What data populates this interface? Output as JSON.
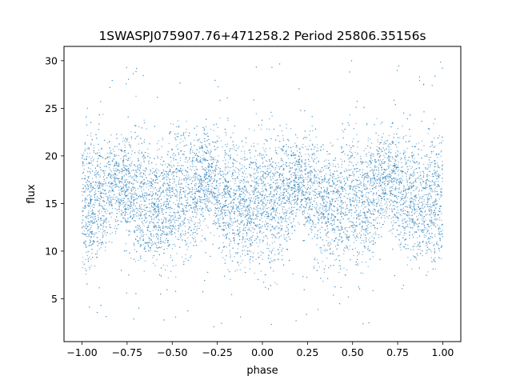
{
  "chart_data": {
    "type": "scatter",
    "title": "1SWASPJ075907.76+471258.2 Period 25806.35156s",
    "xlabel": "phase",
    "ylabel": "flux",
    "xlim": [
      -1.1,
      1.1
    ],
    "ylim": [
      0.5,
      31.5
    ],
    "x_ticks": [
      -1.0,
      -0.75,
      -0.5,
      -0.25,
      0.0,
      0.25,
      0.5,
      0.75,
      1.0
    ],
    "x_tick_labels": [
      "−1.00",
      "−0.75",
      "−0.50",
      "−0.25",
      "0.00",
      "0.25",
      "0.50",
      "0.75",
      "1.00"
    ],
    "y_ticks": [
      5,
      10,
      15,
      20,
      25,
      30
    ],
    "y_tick_labels": [
      "5",
      "10",
      "15",
      "20",
      "25",
      "30"
    ],
    "grid": false,
    "legend": "none",
    "marker_color": "#1f77b4",
    "series": [
      {
        "phase": [
          -1.0,
          -0.9,
          -0.8,
          -0.7,
          -0.6,
          -0.5,
          -0.4,
          -0.3,
          -0.2,
          -0.1,
          0.0,
          0.1,
          0.2,
          0.3,
          0.4,
          0.5,
          0.6,
          0.7,
          0.8,
          0.9,
          1.0
        ],
        "flux_upper_envelope": [
          20.5,
          20.8,
          20.3,
          21.5,
          19.0,
          20.8,
          21.2,
          21.5,
          20.5,
          19.5,
          20.5,
          20.8,
          20.5,
          21.0,
          19.5,
          20.8,
          21.2,
          21.5,
          21.0,
          20.0,
          21.0
        ],
        "flux_lower_envelope": [
          9.8,
          9.7,
          14.0,
          10.0,
          9.7,
          10.0,
          11.0,
          14.5,
          10.5,
          10.3,
          9.7,
          10.0,
          14.5,
          10.5,
          10.0,
          9.8,
          11.0,
          14.5,
          10.5,
          10.0,
          9.8
        ]
      }
    ]
  }
}
